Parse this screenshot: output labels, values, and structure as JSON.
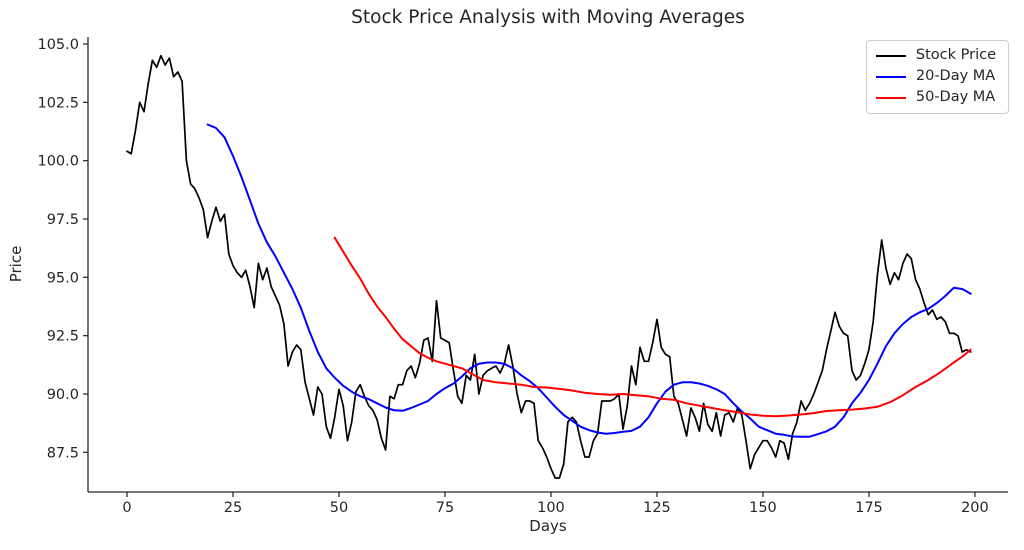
{
  "figure": {
    "title": "Stock Price Analysis with Moving Averages",
    "x_axis_label": "Days",
    "y_axis_label": "Price"
  },
  "legend": {
    "position": "upper right",
    "entries": [
      {
        "label": "Stock Price",
        "color": "#000000"
      },
      {
        "label": "20-Day MA",
        "color": "#0000ff"
      },
      {
        "label": "50-Day MA",
        "color": "#ff0000"
      }
    ]
  },
  "chart_data": {
    "type": "line",
    "title": "Stock Price Analysis with Moving Averages",
    "xlabel": "Days",
    "ylabel": "Price",
    "xlim": [
      -9.2,
      207.8
    ],
    "ylim": [
      85.8,
      105.3
    ],
    "xticks": [
      0,
      25,
      50,
      75,
      100,
      125,
      150,
      175,
      200
    ],
    "yticks": [
      87.5,
      90.0,
      92.5,
      95.0,
      97.5,
      100.0,
      102.5,
      105.0
    ],
    "ytick_labels": [
      "87.5",
      "90.0",
      "92.5",
      "95.0",
      "97.5",
      "100.0",
      "102.5",
      "105.0"
    ],
    "grid": false,
    "legend_position": "upper right",
    "series": [
      {
        "name": "Stock Price",
        "color": "#000000",
        "line_width": 1.7,
        "x_start": 0,
        "x_step": 1,
        "values": [
          100.4,
          100.3,
          101.3,
          102.5,
          102.1,
          103.3,
          104.3,
          104.0,
          104.5,
          104.1,
          104.4,
          103.6,
          103.8,
          103.4,
          100.0,
          99.0,
          98.8,
          98.4,
          97.9,
          96.7,
          97.4,
          98.0,
          97.4,
          97.7,
          96.0,
          95.5,
          95.2,
          95.0,
          95.3,
          94.6,
          93.7,
          95.6,
          94.9,
          95.4,
          94.6,
          94.2,
          93.8,
          93.0,
          91.2,
          91.8,
          92.1,
          91.9,
          90.5,
          89.8,
          89.1,
          90.3,
          90.0,
          88.6,
          88.1,
          89.0,
          90.2,
          89.5,
          88.0,
          88.8,
          90.1,
          90.4,
          89.9,
          89.5,
          89.3,
          88.9,
          88.1,
          87.6,
          89.9,
          89.8,
          90.4,
          90.4,
          91.0,
          91.2,
          90.7,
          91.3,
          92.3,
          92.4,
          91.4,
          94.0,
          92.4,
          92.3,
          92.2,
          91.0,
          89.9,
          89.6,
          90.8,
          90.6,
          91.7,
          90.0,
          90.8,
          91.0,
          91.1,
          91.2,
          90.9,
          91.3,
          92.1,
          91.2,
          90.0,
          89.2,
          89.7,
          89.7,
          89.6,
          88.0,
          87.7,
          87.3,
          86.8,
          86.4,
          86.4,
          87.0,
          88.8,
          89.0,
          88.8,
          88.0,
          87.3,
          87.3,
          88.0,
          88.3,
          89.7,
          89.7,
          89.7,
          89.8,
          90.0,
          88.5,
          89.5,
          91.2,
          90.4,
          92.0,
          91.4,
          91.4,
          92.2,
          93.2,
          92.0,
          91.7,
          91.6,
          89.9,
          89.6,
          88.9,
          88.2,
          89.4,
          89.0,
          88.4,
          89.6,
          88.7,
          88.4,
          89.2,
          88.2,
          89.1,
          89.2,
          88.8,
          89.4,
          89.1,
          88.0,
          86.8,
          87.4,
          87.7,
          88.0,
          88.0,
          87.7,
          87.3,
          88.0,
          87.9,
          87.2,
          88.3,
          88.8,
          89.7,
          89.3,
          89.6,
          90.0,
          90.5,
          91.0,
          91.9,
          92.7,
          93.5,
          92.9,
          92.6,
          92.5,
          91.0,
          90.6,
          90.8,
          91.3,
          91.9,
          93.1,
          95.1,
          96.6,
          95.4,
          94.7,
          95.2,
          94.9,
          95.6,
          96.0,
          95.8,
          94.9,
          94.5,
          93.9,
          93.4,
          93.6,
          93.2,
          93.3,
          93.1,
          92.6,
          92.6,
          92.5,
          91.8,
          91.9,
          91.8
        ]
      },
      {
        "name": "20-Day MA",
        "color": "#0000ff",
        "line_width": 2.0,
        "points": [
          [
            19,
            101.55
          ],
          [
            21,
            101.4
          ],
          [
            23,
            101.0
          ],
          [
            25,
            100.2
          ],
          [
            27,
            99.3
          ],
          [
            29,
            98.3
          ],
          [
            31,
            97.3
          ],
          [
            33,
            96.5
          ],
          [
            35,
            95.9
          ],
          [
            37,
            95.2
          ],
          [
            39,
            94.5
          ],
          [
            41,
            93.7
          ],
          [
            43,
            92.7
          ],
          [
            45,
            91.8
          ],
          [
            47,
            91.1
          ],
          [
            49,
            90.7
          ],
          [
            51,
            90.35
          ],
          [
            53,
            90.1
          ],
          [
            55,
            89.9
          ],
          [
            57,
            89.78
          ],
          [
            59,
            89.6
          ],
          [
            61,
            89.42
          ],
          [
            63,
            89.3
          ],
          [
            65,
            89.28
          ],
          [
            67,
            89.4
          ],
          [
            69,
            89.55
          ],
          [
            71,
            89.7
          ],
          [
            73,
            90.0
          ],
          [
            75,
            90.25
          ],
          [
            77,
            90.45
          ],
          [
            79,
            90.75
          ],
          [
            81,
            91.1
          ],
          [
            83,
            91.3
          ],
          [
            85,
            91.35
          ],
          [
            87,
            91.35
          ],
          [
            89,
            91.3
          ],
          [
            91,
            91.1
          ],
          [
            93,
            90.8
          ],
          [
            95,
            90.55
          ],
          [
            97,
            90.25
          ],
          [
            99,
            89.85
          ],
          [
            101,
            89.45
          ],
          [
            103,
            89.1
          ],
          [
            105,
            88.85
          ],
          [
            107,
            88.6
          ],
          [
            109,
            88.45
          ],
          [
            111,
            88.35
          ],
          [
            113,
            88.3
          ],
          [
            115,
            88.33
          ],
          [
            117,
            88.38
          ],
          [
            119,
            88.42
          ],
          [
            121,
            88.6
          ],
          [
            123,
            89.0
          ],
          [
            125,
            89.6
          ],
          [
            127,
            90.1
          ],
          [
            129,
            90.4
          ],
          [
            131,
            90.5
          ],
          [
            133,
            90.5
          ],
          [
            135,
            90.45
          ],
          [
            137,
            90.35
          ],
          [
            139,
            90.2
          ],
          [
            141,
            90.0
          ],
          [
            143,
            89.6
          ],
          [
            145,
            89.25
          ],
          [
            147,
            88.95
          ],
          [
            149,
            88.6
          ],
          [
            151,
            88.45
          ],
          [
            153,
            88.3
          ],
          [
            155,
            88.25
          ],
          [
            157,
            88.18
          ],
          [
            159,
            88.17
          ],
          [
            161,
            88.17
          ],
          [
            163,
            88.28
          ],
          [
            165,
            88.4
          ],
          [
            167,
            88.6
          ],
          [
            169,
            89.0
          ],
          [
            171,
            89.6
          ],
          [
            173,
            90.05
          ],
          [
            175,
            90.6
          ],
          [
            177,
            91.3
          ],
          [
            179,
            92.05
          ],
          [
            181,
            92.6
          ],
          [
            183,
            93.0
          ],
          [
            185,
            93.3
          ],
          [
            187,
            93.5
          ],
          [
            189,
            93.65
          ],
          [
            191,
            93.9
          ],
          [
            193,
            94.2
          ],
          [
            195,
            94.55
          ],
          [
            197,
            94.5
          ],
          [
            199,
            94.3
          ]
        ]
      },
      {
        "name": "50-Day MA",
        "color": "#ff0000",
        "line_width": 2.0,
        "points": [
          [
            49,
            96.7
          ],
          [
            51,
            96.1
          ],
          [
            53,
            95.5
          ],
          [
            55,
            94.95
          ],
          [
            57,
            94.3
          ],
          [
            59,
            93.75
          ],
          [
            61,
            93.3
          ],
          [
            63,
            92.8
          ],
          [
            65,
            92.35
          ],
          [
            67,
            92.05
          ],
          [
            69,
            91.75
          ],
          [
            71,
            91.55
          ],
          [
            73,
            91.4
          ],
          [
            75,
            91.3
          ],
          [
            77,
            91.2
          ],
          [
            79,
            91.1
          ],
          [
            81,
            90.9
          ],
          [
            84,
            90.6
          ],
          [
            87,
            90.5
          ],
          [
            90,
            90.45
          ],
          [
            93,
            90.4
          ],
          [
            96,
            90.3
          ],
          [
            99,
            90.28
          ],
          [
            102,
            90.22
          ],
          [
            105,
            90.15
          ],
          [
            108,
            90.05
          ],
          [
            111,
            90.0
          ],
          [
            114,
            89.97
          ],
          [
            117,
            90.0
          ],
          [
            120,
            89.95
          ],
          [
            123,
            89.9
          ],
          [
            126,
            89.8
          ],
          [
            129,
            89.75
          ],
          [
            132,
            89.6
          ],
          [
            135,
            89.5
          ],
          [
            138,
            89.4
          ],
          [
            141,
            89.3
          ],
          [
            144,
            89.22
          ],
          [
            147,
            89.12
          ],
          [
            150,
            89.07
          ],
          [
            153,
            89.05
          ],
          [
            156,
            89.08
          ],
          [
            159,
            89.12
          ],
          [
            162,
            89.18
          ],
          [
            165,
            89.27
          ],
          [
            168,
            89.3
          ],
          [
            171,
            89.33
          ],
          [
            174,
            89.38
          ],
          [
            177,
            89.45
          ],
          [
            180,
            89.65
          ],
          [
            183,
            89.95
          ],
          [
            186,
            90.3
          ],
          [
            189,
            90.6
          ],
          [
            192,
            90.95
          ],
          [
            195,
            91.35
          ],
          [
            197,
            91.6
          ],
          [
            199,
            91.9
          ]
        ]
      }
    ]
  }
}
